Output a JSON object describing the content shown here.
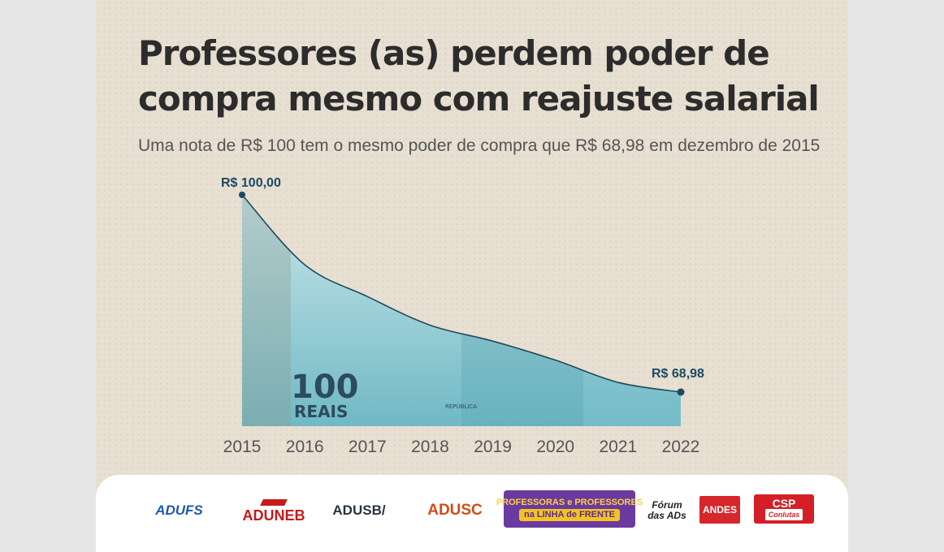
{
  "header": {
    "title": "Professores (as) perdem poder de compra mesmo com reajuste salarial",
    "subtitle": "Uma nota de R$ 100 tem o mesmo poder de compra que R$ 68,98 em dezembro de 2015"
  },
  "chart_data": {
    "type": "area",
    "x": [
      2015,
      2016,
      2017,
      2018,
      2019,
      2020,
      2021,
      2022
    ],
    "categories": [
      "2015",
      "2016",
      "2017",
      "2018",
      "2019",
      "2020",
      "2021",
      "2022"
    ],
    "values": [
      100.0,
      89.0,
      84.0,
      79.5,
      77.0,
      74.0,
      70.5,
      68.98
    ],
    "start_label": "R$ 100,00",
    "end_label": "R$ 68,98",
    "banknote_value": "100",
    "banknote_text": "REAIS",
    "banknote_small": "REPÚBLICA",
    "ylim": [
      60,
      100
    ],
    "grid": false,
    "legend": "none",
    "colors": {
      "line": "#1f4a5e",
      "marker": "#1c4a61",
      "label": "#1c4a61",
      "fill_top": "#c8e6ea",
      "fill_bottom": "#6fb8c4"
    }
  },
  "footer": {
    "logos": [
      {
        "name": "ADUFS"
      },
      {
        "name": "ADUNEB"
      },
      {
        "name": "ADUSB/"
      },
      {
        "name": "ADUSC"
      },
      {
        "name": "PROFESSORAS e PROFESSORES",
        "line2": "na LINHA de FRENTE"
      },
      {
        "name": "Fórum",
        "line2": "das ADs"
      },
      {
        "name": "ANDES"
      },
      {
        "name": "CSP",
        "line2": "Conlutas"
      }
    ]
  }
}
